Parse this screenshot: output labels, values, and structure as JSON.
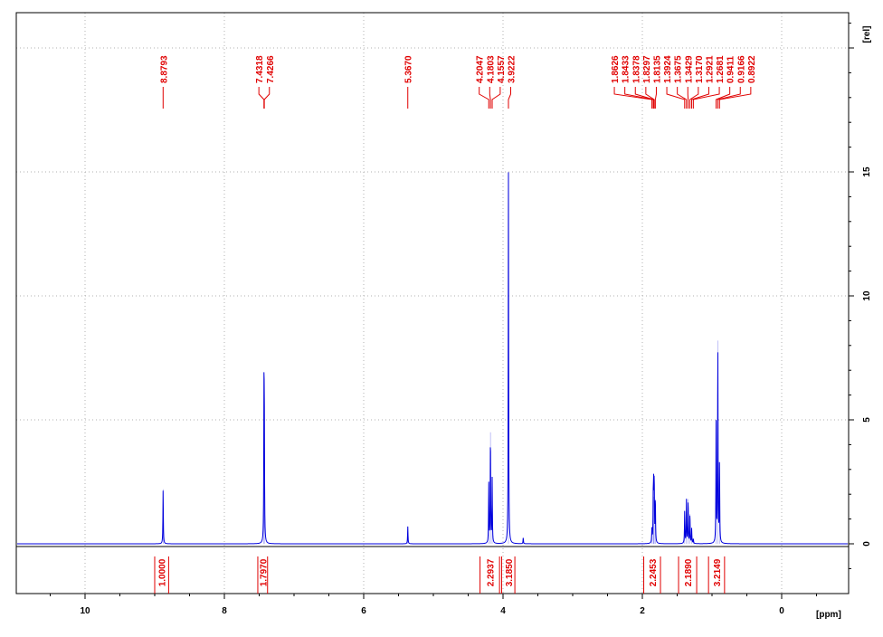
{
  "chart_data": {
    "type": "line",
    "title": "",
    "xlabel": "[ppm]",
    "ylabel": "[rel]",
    "xlim": [
      11.0,
      -1.0
    ],
    "ylim": [
      -2,
      21
    ],
    "x_ticks": [
      "10",
      "8",
      "6",
      "4",
      "2",
      "0"
    ],
    "y_ticks": [
      "0",
      "5",
      "10",
      "15"
    ],
    "grid": true,
    "colors": {
      "spectrum": "#0000dd",
      "annotation": "#e00000",
      "axis": "#000000",
      "grid": "#b0b0b0"
    },
    "series": [
      {
        "peaks": [
          {
            "ppm": 8.8793,
            "height": 2.2
          },
          {
            "ppm": 7.4318,
            "height": 5.4
          },
          {
            "ppm": 7.4266,
            "height": 4.9
          },
          {
            "ppm": 5.367,
            "height": 0.7
          },
          {
            "ppm": 4.2047,
            "height": 2.4
          },
          {
            "ppm": 4.1803,
            "height": 4.5
          },
          {
            "ppm": 4.1557,
            "height": 2.6
          },
          {
            "ppm": 3.9222,
            "height": 15.0
          },
          {
            "ppm": 3.71,
            "height": 0.25
          },
          {
            "ppm": 1.8626,
            "height": 0.6
          },
          {
            "ppm": 1.8433,
            "height": 1.7
          },
          {
            "ppm": 1.8378,
            "height": 1.9
          },
          {
            "ppm": 1.8297,
            "height": 2.5
          },
          {
            "ppm": 1.8135,
            "height": 1.8
          },
          {
            "ppm": 1.3924,
            "height": 1.3
          },
          {
            "ppm": 1.3675,
            "height": 1.8
          },
          {
            "ppm": 1.3429,
            "height": 1.8
          },
          {
            "ppm": 1.317,
            "height": 1.2
          },
          {
            "ppm": 1.2921,
            "height": 0.6
          },
          {
            "ppm": 1.2681,
            "height": 0.2
          },
          {
            "ppm": 0.9411,
            "height": 4.9
          },
          {
            "ppm": 0.9166,
            "height": 8.2
          },
          {
            "ppm": 0.8922,
            "height": 3.2
          }
        ]
      }
    ],
    "peak_labels": [
      {
        "text": "8.8793",
        "ppm": 8.8793
      },
      {
        "text": "7.4318",
        "ppm": 7.4318
      },
      {
        "text": "7.4266",
        "ppm": 7.4266
      },
      {
        "text": "5.3670",
        "ppm": 5.367
      },
      {
        "text": "4.2047",
        "ppm": 4.2047
      },
      {
        "text": "4.1803",
        "ppm": 4.1803
      },
      {
        "text": "4.1557",
        "ppm": 4.1557
      },
      {
        "text": "3.9222",
        "ppm": 3.9222
      },
      {
        "text": "1.8626",
        "ppm": 1.8626
      },
      {
        "text": "1.8433",
        "ppm": 1.8433
      },
      {
        "text": "1.8378",
        "ppm": 1.8378
      },
      {
        "text": "1.8297",
        "ppm": 1.8297
      },
      {
        "text": "1.8135",
        "ppm": 1.8135
      },
      {
        "text": "1.3924",
        "ppm": 1.3924
      },
      {
        "text": "1.3675",
        "ppm": 1.3675
      },
      {
        "text": "1.3429",
        "ppm": 1.3429
      },
      {
        "text": "1.3170",
        "ppm": 1.317
      },
      {
        "text": "1.2921",
        "ppm": 1.2921
      },
      {
        "text": "1.2681",
        "ppm": 1.2681
      },
      {
        "text": "0.9411",
        "ppm": 0.9411
      },
      {
        "text": "0.9166",
        "ppm": 0.9166
      },
      {
        "text": "0.8922",
        "ppm": 0.8922
      }
    ],
    "integrals": [
      {
        "text": "1.0000",
        "from": 9.0,
        "to": 8.8
      },
      {
        "text": "1.7970",
        "from": 7.52,
        "to": 7.38
      },
      {
        "text": "2.2937",
        "from": 4.33,
        "to": 4.05
      },
      {
        "text": "3.1850",
        "from": 4.02,
        "to": 3.83
      },
      {
        "text": "2.2453",
        "from": 1.98,
        "to": 1.74
      },
      {
        "text": "2.1890",
        "from": 1.48,
        "to": 1.22
      },
      {
        "text": "3.2149",
        "from": 1.05,
        "to": 0.82
      }
    ]
  }
}
